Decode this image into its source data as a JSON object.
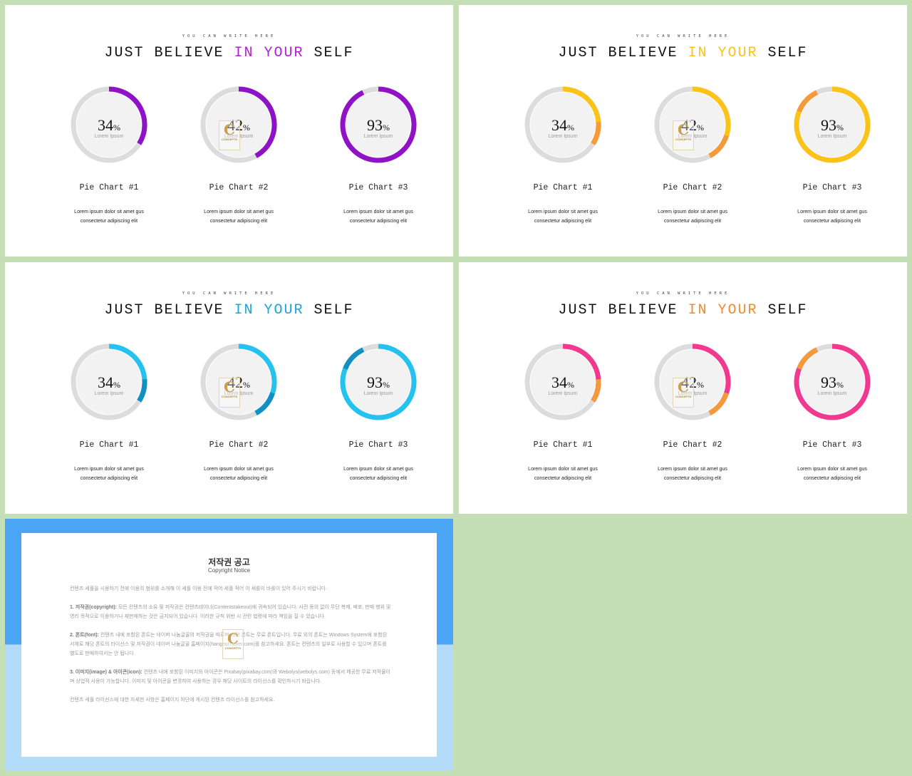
{
  "slides": [
    {
      "kicker": "YOU CAN WRITE HERE",
      "title_plain": "JUST BELIEVE ",
      "title_accent": "IN YOUR",
      "title_end": " SELF",
      "accent_color": "#b11fd6",
      "ring_base": "#dcdcdc",
      "primary_color": "#9012c7",
      "secondary_color": "#9012c7",
      "center_fill": "#f2f2f2",
      "charts": [
        {
          "value": "34",
          "unit": "%",
          "sub": "Lorem Ipsum",
          "name": "Pie Chart #1",
          "desc": "Lorem ipsum dolor sit amet gus consectetur adipiscing elit"
        },
        {
          "value": "42",
          "unit": "%",
          "sub": "Lorem Ipsum",
          "name": "Pie Chart #2",
          "desc": "Lorem ipsum dolor sit amet gus consectetur adipiscing elit"
        },
        {
          "value": "93",
          "unit": "%",
          "sub": "Lorem Ipsum",
          "name": "Pie Chart #3",
          "desc": "Lorem ipsum dolor sit amet gus consectetur adipiscing elit"
        }
      ]
    },
    {
      "kicker": "YOU CAN WRITE HERE",
      "title_plain": "JUST BELIEVE ",
      "title_accent": "IN YOUR",
      "title_end": " SELF",
      "accent_color": "#f5c518",
      "ring_base": "#dcdcdc",
      "primary_color": "#fbc319",
      "secondary_color": "#f59a3a",
      "center_fill": "#f2f2f2",
      "charts": [
        {
          "value": "34",
          "unit": "%",
          "sub": "Lorem Ipsum",
          "name": "Pie Chart #1",
          "desc": "Lorem ipsum dolor sit amet gus consectetur adipiscing elit"
        },
        {
          "value": "42",
          "unit": "%",
          "sub": "Lorem Ipsum",
          "name": "Pie Chart #2",
          "desc": "Lorem ipsum dolor sit amet gus consectetur adipiscing elit"
        },
        {
          "value": "93",
          "unit": "%",
          "sub": "Lorem Ipsum",
          "name": "Pie Chart #3",
          "desc": "Lorem ipsum dolor sit amet gus consectetur adipiscing elit"
        }
      ]
    },
    {
      "kicker": "YOU CAN WRITE HERE",
      "title_plain": "JUST BELIEVE ",
      "title_accent": "IN YOUR",
      "title_end": " SELF",
      "accent_color": "#1aa6d8",
      "ring_base": "#dcdcdc",
      "primary_color": "#25c2ef",
      "secondary_color": "#1390c2",
      "center_fill": "#f2f2f2",
      "charts": [
        {
          "value": "34",
          "unit": "%",
          "sub": "Lorem Ipsum",
          "name": "Pie Chart #1",
          "desc": "Lorem ipsum dolor sit amet gus consectetur adipiscing elit"
        },
        {
          "value": "42",
          "unit": "%",
          "sub": "Lorem Ipsum",
          "name": "Pie Chart #2",
          "desc": "Lorem ipsum dolor sit amet gus consectetur adipiscing elit"
        },
        {
          "value": "93",
          "unit": "%",
          "sub": "Lorem Ipsum",
          "name": "Pie Chart #3",
          "desc": "Lorem ipsum dolor sit amet gus consectetur adipiscing elit"
        }
      ]
    },
    {
      "kicker": "YOU CAN WRITE HERE",
      "title_plain": "JUST BELIEVE ",
      "title_accent": "IN YOUR",
      "title_end": " SELF",
      "accent_color": "#f08a2c",
      "ring_base": "#dcdcdc",
      "primary_color": "#f0398f",
      "secondary_color": "#f59a3a",
      "center_fill": "#f2f2f2",
      "charts": [
        {
          "value": "34",
          "unit": "%",
          "sub": "Lorem Ipsum",
          "name": "Pie Chart #1",
          "desc": "Lorem ipsum dolor sit amet gus consectetur adipiscing elit"
        },
        {
          "value": "42",
          "unit": "%",
          "sub": "Lorem Ipsum",
          "name": "Pie Chart #2",
          "desc": "Lorem ipsum dolor sit amet gus consectetur adipiscing elit"
        },
        {
          "value": "93",
          "unit": "%",
          "sub": "Lorem Ipsum",
          "name": "Pie Chart #3",
          "desc": "Lorem ipsum dolor sit amet gus consectetur adipiscing elit"
        }
      ]
    }
  ],
  "watermark": {
    "letter": "C",
    "text": "CONCEPTS"
  },
  "copyright": {
    "title": "저작권 공고",
    "subtitle": "Copyright Notice",
    "intro": "컨텐츠 세플을 시용하기 전에 이용의 범위를 소개해 이 세플 이용 전에 적어 세플 적어 이 세를이 바를이 있어 주시기 바랍니다.",
    "p1_head": "1. 저작권(copyright):",
    "p1": "모든 컨텐츠의 소유 및 저작권은 컨텐츠테이너(Contentstakeout)에 귀속되어 있습니다. 사전 동의 없이 무단 복제, 배포, 판매 행위 및 영리 목적으로 이용하거나 재판매하는 것은 금지되어 있습니다. 이러한 규칙 위반 시 관련 법령에 따라 책임을 질 수 있습니다.",
    "p2_head": "2. 폰트(font):",
    "p2": "컨텐츠 내에 포함된 폰트는 네이버 나눔글꼴의 저작권을 따르며 해당 폰트는 무료 폰트입니다. 무료 외의 폰트는 Windows System에 포함된 서체로 해당 폰트의 라이선스 및 저작권이 네이버 나눔글꼴 홈페이지(hangeul.naver.com)를 참고하세요. 폰트는 컨텐츠의 일부로 사용할 수 있으며 폰트를 별도로 판매하여서는 안 됩니다.",
    "p3_head": "3. 이미지(image) & 아이콘(icon):",
    "p3": "컨텐츠 내에 포함된 이미지와 아이콘은 Pixabay(pixabay.com)와 Webolys(webolys.com) 등에서 제공한 무료 저작물이며 상업적 사용이 가능합니다. 이미지 및 아이콘을 변경하여 사용하는 경우 해당 사이트의 라이선스를 확인하시기 바랍니다.",
    "outro": "컨텐츠 세플 라이선스에 대한 자세한 사항은 홈페이지 하단에 게시된 컨텐츠 라이선스를 참고하세요."
  }
}
